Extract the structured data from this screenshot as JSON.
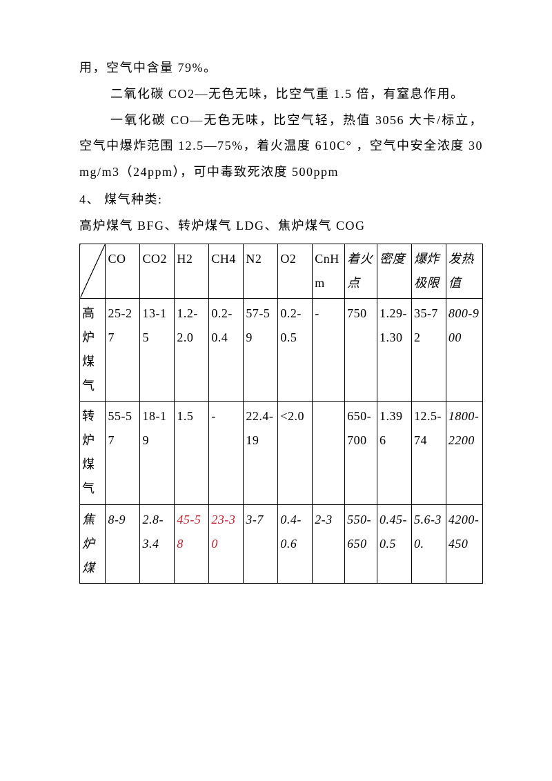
{
  "paragraphs": {
    "p1": "用，空气中含量 79%。",
    "p2": "二氧化碳 CO2—无色无味，比空气重 1.5 倍，有窒息作用。",
    "p3": "一氧化碳 CO—无色无味，比空气轻，热值 3056 大卡/标立，空气中爆炸范围 12.5—75%，着火温度 610C° ，空气中安全浓度 30mg/m3（24ppm），可中毒致死浓度 500ppm",
    "p4": "4、 煤气种类:",
    "p5": "高炉煤气 BFG、转炉煤气 LDG、焦炉煤气 COG"
  },
  "table": {
    "columns": [
      "",
      "CO",
      "CO2",
      "H2",
      "CH4",
      "N2",
      "O2",
      "CnHm",
      "着火点",
      "密度",
      "爆炸极限",
      "发热值"
    ],
    "column_styles": {
      "8": "italic",
      "9": "italic",
      "10": "italic",
      "11": "italic"
    },
    "rows": [
      {
        "label": "高炉煤气",
        "label_style": "",
        "cells": [
          "25-27",
          "13-15",
          "1.2-2.0",
          "0.2-0.4",
          "57-59",
          "0.2-0.5",
          "-",
          "750",
          "1.29-1.30",
          "35-72",
          "800-900"
        ],
        "cell_styles": [
          "",
          "",
          "",
          "",
          "",
          "",
          "",
          "",
          "",
          "",
          "italic"
        ]
      },
      {
        "label": "转炉煤气",
        "label_style": "",
        "cells": [
          "55-57",
          "18-19",
          "1.5",
          "-",
          "22.4-19",
          "<2.0",
          "",
          "650-700",
          "1.396",
          "12.5-74",
          "1800-2200"
        ],
        "cell_styles": [
          "",
          "",
          "",
          "",
          "",
          "",
          "",
          "",
          "",
          "",
          "italic"
        ]
      },
      {
        "label": "焦炉煤",
        "label_style": "italic",
        "cells": [
          "8-9",
          "2.8-3.4",
          "45-58",
          "23-30",
          "3-7",
          "0.4-0.6",
          "2-3",
          "550-650",
          "0.45-0.5",
          "5.6-30.",
          "4200-450"
        ],
        "cell_styles": [
          "italic",
          "italic",
          "italic red",
          "italic red",
          "italic",
          "italic",
          "italic",
          "italic",
          "italic",
          "italic",
          "italic"
        ]
      }
    ]
  }
}
